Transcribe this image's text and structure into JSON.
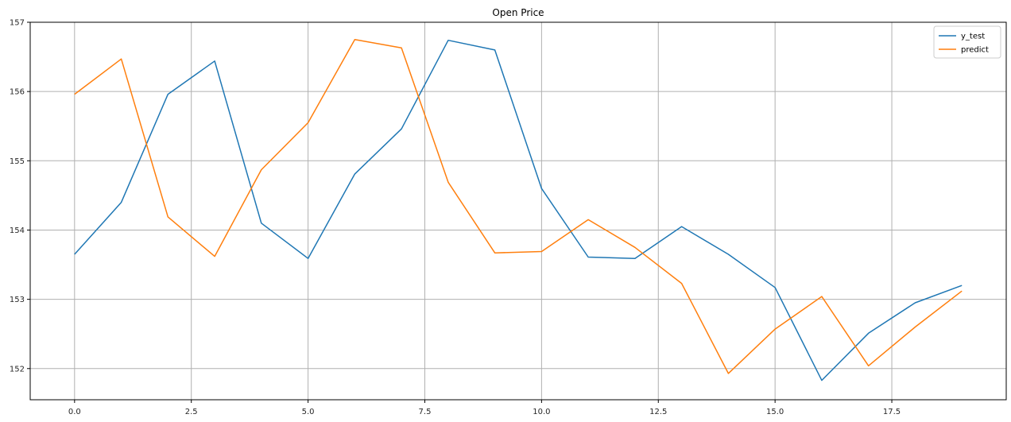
{
  "chart_data": {
    "type": "line",
    "title": "Open Price",
    "xlabel": "",
    "ylabel": "",
    "xlim": [
      -0.95,
      19.95
    ],
    "ylim": [
      151.55,
      157.0
    ],
    "x_ticks": [
      0.0,
      2.5,
      5.0,
      7.5,
      10.0,
      12.5,
      15.0,
      17.5
    ],
    "x_tick_labels": [
      "0.0",
      "2.5",
      "5.0",
      "7.5",
      "10.0",
      "12.5",
      "15.0",
      "17.5"
    ],
    "y_ticks": [
      152,
      153,
      154,
      155,
      156,
      157
    ],
    "y_tick_labels": [
      "152",
      "153",
      "154",
      "155",
      "156",
      "157"
    ],
    "grid": true,
    "legend_position": "top-right",
    "x": [
      0,
      1,
      2,
      3,
      4,
      5,
      6,
      7,
      8,
      9,
      10,
      11,
      12,
      13,
      14,
      15,
      16,
      17,
      18,
      19
    ],
    "series": [
      {
        "name": "y_test",
        "color": "#1f77b4",
        "values": [
          153.65,
          154.4,
          155.96,
          156.44,
          154.1,
          153.59,
          154.81,
          155.46,
          156.74,
          156.6,
          154.6,
          153.61,
          153.59,
          154.05,
          153.65,
          153.17,
          151.83,
          152.51,
          152.95,
          153.2
        ]
      },
      {
        "name": "predict",
        "color": "#ff7f0e",
        "values": [
          155.96,
          156.47,
          154.19,
          153.62,
          154.87,
          155.55,
          156.75,
          156.63,
          154.69,
          153.67,
          153.69,
          154.15,
          153.75,
          153.23,
          151.93,
          152.57,
          153.04,
          152.04,
          152.6,
          153.12
        ]
      }
    ]
  }
}
